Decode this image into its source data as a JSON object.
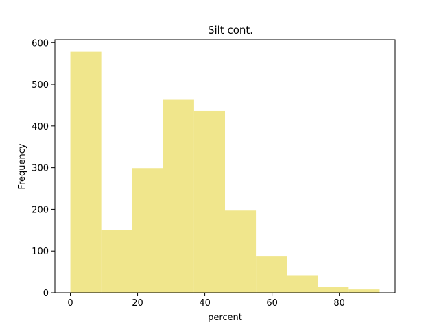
{
  "chart_data": {
    "type": "bar",
    "title": "Silt cont.",
    "xlabel": "percent",
    "ylabel": "Frequency",
    "bin_edges": [
      0,
      9.2,
      18.4,
      27.6,
      36.8,
      46.0,
      55.2,
      64.4,
      73.6,
      82.8,
      92.0
    ],
    "values": [
      578,
      151,
      299,
      463,
      436,
      197,
      87,
      42,
      14,
      8
    ],
    "xlim": [
      -4.6,
      96.6
    ],
    "ylim": [
      0,
      607
    ],
    "xticks": [
      0,
      20,
      40,
      60,
      80
    ],
    "yticks": [
      0,
      100,
      200,
      300,
      400,
      500,
      600
    ],
    "grid": false,
    "bar_color": "#f0e68c"
  }
}
